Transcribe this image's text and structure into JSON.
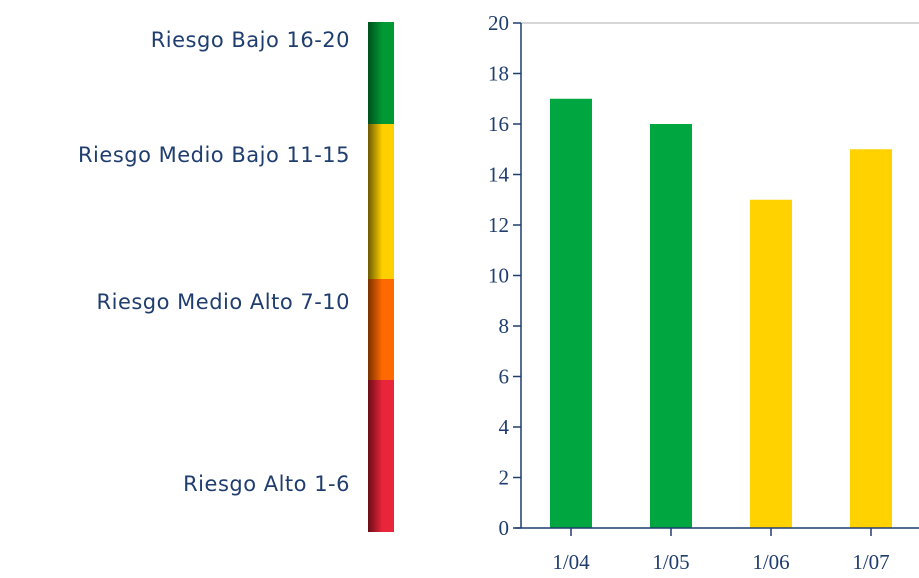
{
  "legend": {
    "items": [
      {
        "label": "Riesgo Bajo 16-20",
        "color": "#009933",
        "color_dark": "#00501c"
      },
      {
        "label": "Riesgo Medio Bajo 11-15",
        "color": "#ffd000",
        "color_dark": "#6b5a00"
      },
      {
        "label": "Riesgo Medio Alto 7-10",
        "color": "#ff6a00",
        "color_dark": "#7a3000"
      },
      {
        "label": "Riesgo Alto 1-6",
        "color": "#e8253a",
        "color_dark": "#6a0d17"
      }
    ]
  },
  "chart_data": {
    "type": "bar",
    "categories": [
      "1/04",
      "1/05",
      "1/06",
      "1/07"
    ],
    "values": [
      17,
      16,
      13,
      15
    ],
    "bar_colors": [
      "#00a63f",
      "#00a63f",
      "#ffd200",
      "#ffd200"
    ],
    "ylim": [
      0,
      20
    ],
    "yticks": [
      0,
      2,
      4,
      6,
      8,
      10,
      12,
      14,
      16,
      18,
      20
    ],
    "grid": false,
    "title": "",
    "xlabel": "",
    "ylabel": "",
    "axis_color": "#1f3d6e"
  }
}
